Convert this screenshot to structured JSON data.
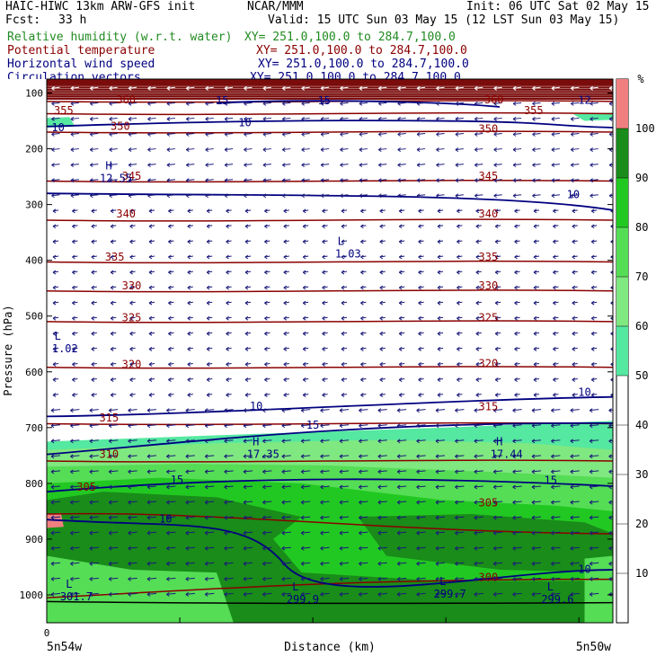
{
  "header": {
    "model": "HAIC-HIWC 13km ARW-GFS init",
    "org": "NCAR/MMM",
    "init": "Init: 06 UTC Sat 02 May 15",
    "fcst_label": "Fcst:",
    "fcst_value": "33 h",
    "valid": "Valid: 15 UTC Sun 03 May 15 (12 LST Sun 03 May 15)"
  },
  "fields": [
    {
      "name": "Relative humidity (w.r.t. water)",
      "xy": "XY= 251.0,100.0 to 284.7,100.0",
      "color": "#228b22"
    },
    {
      "name": "Potential temperature",
      "xy": "XY= 251.0,100.0 to 284.7,100.0",
      "color": "#8b0000"
    },
    {
      "name": "Horizontal wind speed",
      "xy": "XY= 251.0,100.0 to 284.7,100.0",
      "color": "#000080"
    },
    {
      "name": "Circulation vectors",
      "xy": "XY= 251.0,100.0 to 284.7,100.0",
      "color": "#000080"
    }
  ],
  "chart_data": {
    "type": "cross-section",
    "ylabel": "Pressure (hPa)",
    "xlabel": "Distance (km)",
    "x_start_label": "5n54w",
    "x_end_label": "5n50w",
    "x_zero_label": "0",
    "y_ticks": [
      100,
      200,
      300,
      400,
      500,
      600,
      700,
      800,
      900,
      1000
    ],
    "y_range": [
      75,
      1050
    ],
    "colorbar": {
      "unit": "%",
      "ticks": [
        10,
        20,
        30,
        40,
        50,
        60,
        70,
        80,
        90,
        100
      ],
      "bands": [
        {
          "from": 50,
          "to": 60,
          "color": "#55e8a0"
        },
        {
          "from": 60,
          "to": 70,
          "color": "#80e880"
        },
        {
          "from": 70,
          "to": 80,
          "color": "#55dd55"
        },
        {
          "from": 80,
          "to": 90,
          "color": "#22c822"
        },
        {
          "from": 90,
          "to": 100,
          "color": "#198c19"
        },
        {
          "from": 100,
          "to": 110,
          "color": "#f08080"
        }
      ]
    },
    "theta_contours": [
      {
        "value": 300,
        "pressure": 972
      },
      {
        "value": 305,
        "pressure": 855
      },
      {
        "value": 310,
        "pressure": 760
      },
      {
        "value": 315,
        "pressure": 693
      },
      {
        "value": 320,
        "pressure": 592
      },
      {
        "value": 325,
        "pressure": 510
      },
      {
        "value": 330,
        "pressure": 455
      },
      {
        "value": 335,
        "pressure": 403
      },
      {
        "value": 340,
        "pressure": 328
      },
      {
        "value": 345,
        "pressure": 258
      },
      {
        "value": 350,
        "pressure": 170
      },
      {
        "value": 355,
        "pressure": 137
      },
      {
        "value": 360,
        "pressure": 115
      }
    ],
    "theta_labels": [
      {
        "text": "360",
        "x": 0.14,
        "p": 115
      },
      {
        "text": "360",
        "x": 0.79,
        "p": 115
      },
      {
        "text": "355",
        "x": 0.03,
        "p": 135
      },
      {
        "text": "355",
        "x": 0.86,
        "p": 135
      },
      {
        "text": "350",
        "x": 0.13,
        "p": 163
      },
      {
        "text": "350",
        "x": 0.78,
        "p": 168
      },
      {
        "text": "345",
        "x": 0.15,
        "p": 252
      },
      {
        "text": "345",
        "x": 0.78,
        "p": 252
      },
      {
        "text": "340",
        "x": 0.14,
        "p": 320
      },
      {
        "text": "340",
        "x": 0.78,
        "p": 320
      },
      {
        "text": "335",
        "x": 0.12,
        "p": 397
      },
      {
        "text": "335",
        "x": 0.78,
        "p": 397
      },
      {
        "text": "330",
        "x": 0.15,
        "p": 449
      },
      {
        "text": "330",
        "x": 0.78,
        "p": 449
      },
      {
        "text": "325",
        "x": 0.15,
        "p": 506
      },
      {
        "text": "325",
        "x": 0.78,
        "p": 506
      },
      {
        "text": "320",
        "x": 0.15,
        "p": 590
      },
      {
        "text": "320",
        "x": 0.78,
        "p": 588
      },
      {
        "text": "315",
        "x": 0.11,
        "p": 686
      },
      {
        "text": "315",
        "x": 0.78,
        "p": 666
      },
      {
        "text": "310",
        "x": 0.11,
        "p": 751
      },
      {
        "text": "305",
        "x": 0.07,
        "p": 810
      },
      {
        "text": "305",
        "x": 0.78,
        "p": 838
      },
      {
        "text": "300",
        "x": 0.78,
        "p": 972
      }
    ],
    "wind_labels": [
      {
        "text": "15",
        "x": 0.31,
        "p": 117
      },
      {
        "text": "15",
        "x": 0.49,
        "p": 117
      },
      {
        "text": "12",
        "x": 0.95,
        "p": 116
      },
      {
        "text": "10",
        "x": 0.35,
        "p": 156
      },
      {
        "text": "10",
        "x": 0.02,
        "p": 165
      },
      {
        "text": "10",
        "x": 0.93,
        "p": 285
      },
      {
        "text": "10",
        "x": 0.95,
        "p": 640
      },
      {
        "text": "10",
        "x": 0.37,
        "p": 665
      },
      {
        "text": "15",
        "x": 0.47,
        "p": 699
      },
      {
        "text": "15",
        "x": 0.23,
        "p": 797
      },
      {
        "text": "15",
        "x": 0.89,
        "p": 798
      },
      {
        "text": "10",
        "x": 0.21,
        "p": 867
      },
      {
        "text": "10",
        "x": 0.95,
        "p": 957
      }
    ],
    "extrema": [
      {
        "symbol": "H",
        "value": "12.55",
        "x": 0.1,
        "p": 250
      },
      {
        "symbol": "L",
        "value": "1.03",
        "x": 0.51,
        "p": 385
      },
      {
        "symbol": "L",
        "value": "1.02",
        "x": 0.01,
        "p": 555
      },
      {
        "symbol": "H",
        "value": "17.35",
        "x": 0.36,
        "p": 745
      },
      {
        "symbol": "H",
        "value": "17.44",
        "x": 0.79,
        "p": 745
      },
      {
        "symbol": "L",
        "value": "301.7",
        "x": 0.03,
        "p": 1000
      },
      {
        "symbol": "L",
        "value": "299.9",
        "x": 0.43,
        "p": 1005
      },
      {
        "symbol": "L",
        "value": "299.7",
        "x": 0.69,
        "p": 995
      },
      {
        "symbol": "L",
        "value": "299.6",
        "x": 0.88,
        "p": 1005
      }
    ]
  }
}
